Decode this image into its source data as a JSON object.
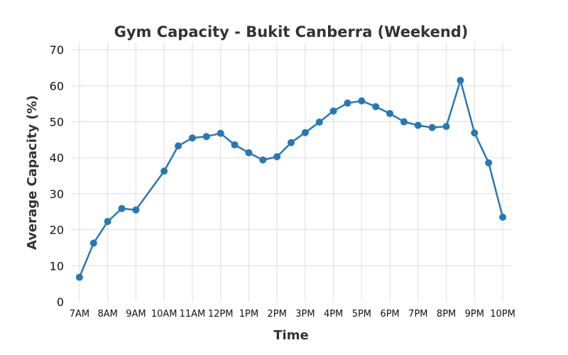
{
  "chart_data": {
    "type": "line",
    "title": "Gym Capacity - Bukit Canberra (Weekend)",
    "xlabel": "Time",
    "ylabel": "Average Capacity (%)",
    "ylim": [
      0,
      72
    ],
    "yticks": [
      0,
      10,
      20,
      30,
      40,
      50,
      60,
      70
    ],
    "xticks": [
      "7AM",
      "8AM",
      "9AM",
      "10AM",
      "11AM",
      "12PM",
      "1PM",
      "2PM",
      "3PM",
      "4PM",
      "5PM",
      "6PM",
      "7PM",
      "8PM",
      "9PM",
      "10PM"
    ],
    "grid": true,
    "color": "#2878b2",
    "series": [
      {
        "x": [
          "7:00",
          "7:30",
          "8:00",
          "8:30",
          "9:00",
          "10:00",
          "10:30",
          "11:00",
          "11:30",
          "12:00",
          "12:30",
          "13:00",
          "13:30",
          "14:00",
          "14:30",
          "15:00",
          "15:30",
          "16:00",
          "16:30",
          "17:00",
          "17:30",
          "18:00",
          "18:30",
          "19:00",
          "19:30",
          "20:00",
          "20:30",
          "21:00",
          "21:30",
          "22:00"
        ],
        "values": [
          6.8,
          16.3,
          22.3,
          25.9,
          25.5,
          36.3,
          43.3,
          45.5,
          45.9,
          46.8,
          43.6,
          41.4,
          39.4,
          40.3,
          44.2,
          47.0,
          49.9,
          53.0,
          55.2,
          55.8,
          54.2,
          52.3,
          50.0,
          49.0,
          48.4,
          48.7,
          61.5,
          46.9,
          38.6,
          23.5
        ]
      }
    ]
  }
}
